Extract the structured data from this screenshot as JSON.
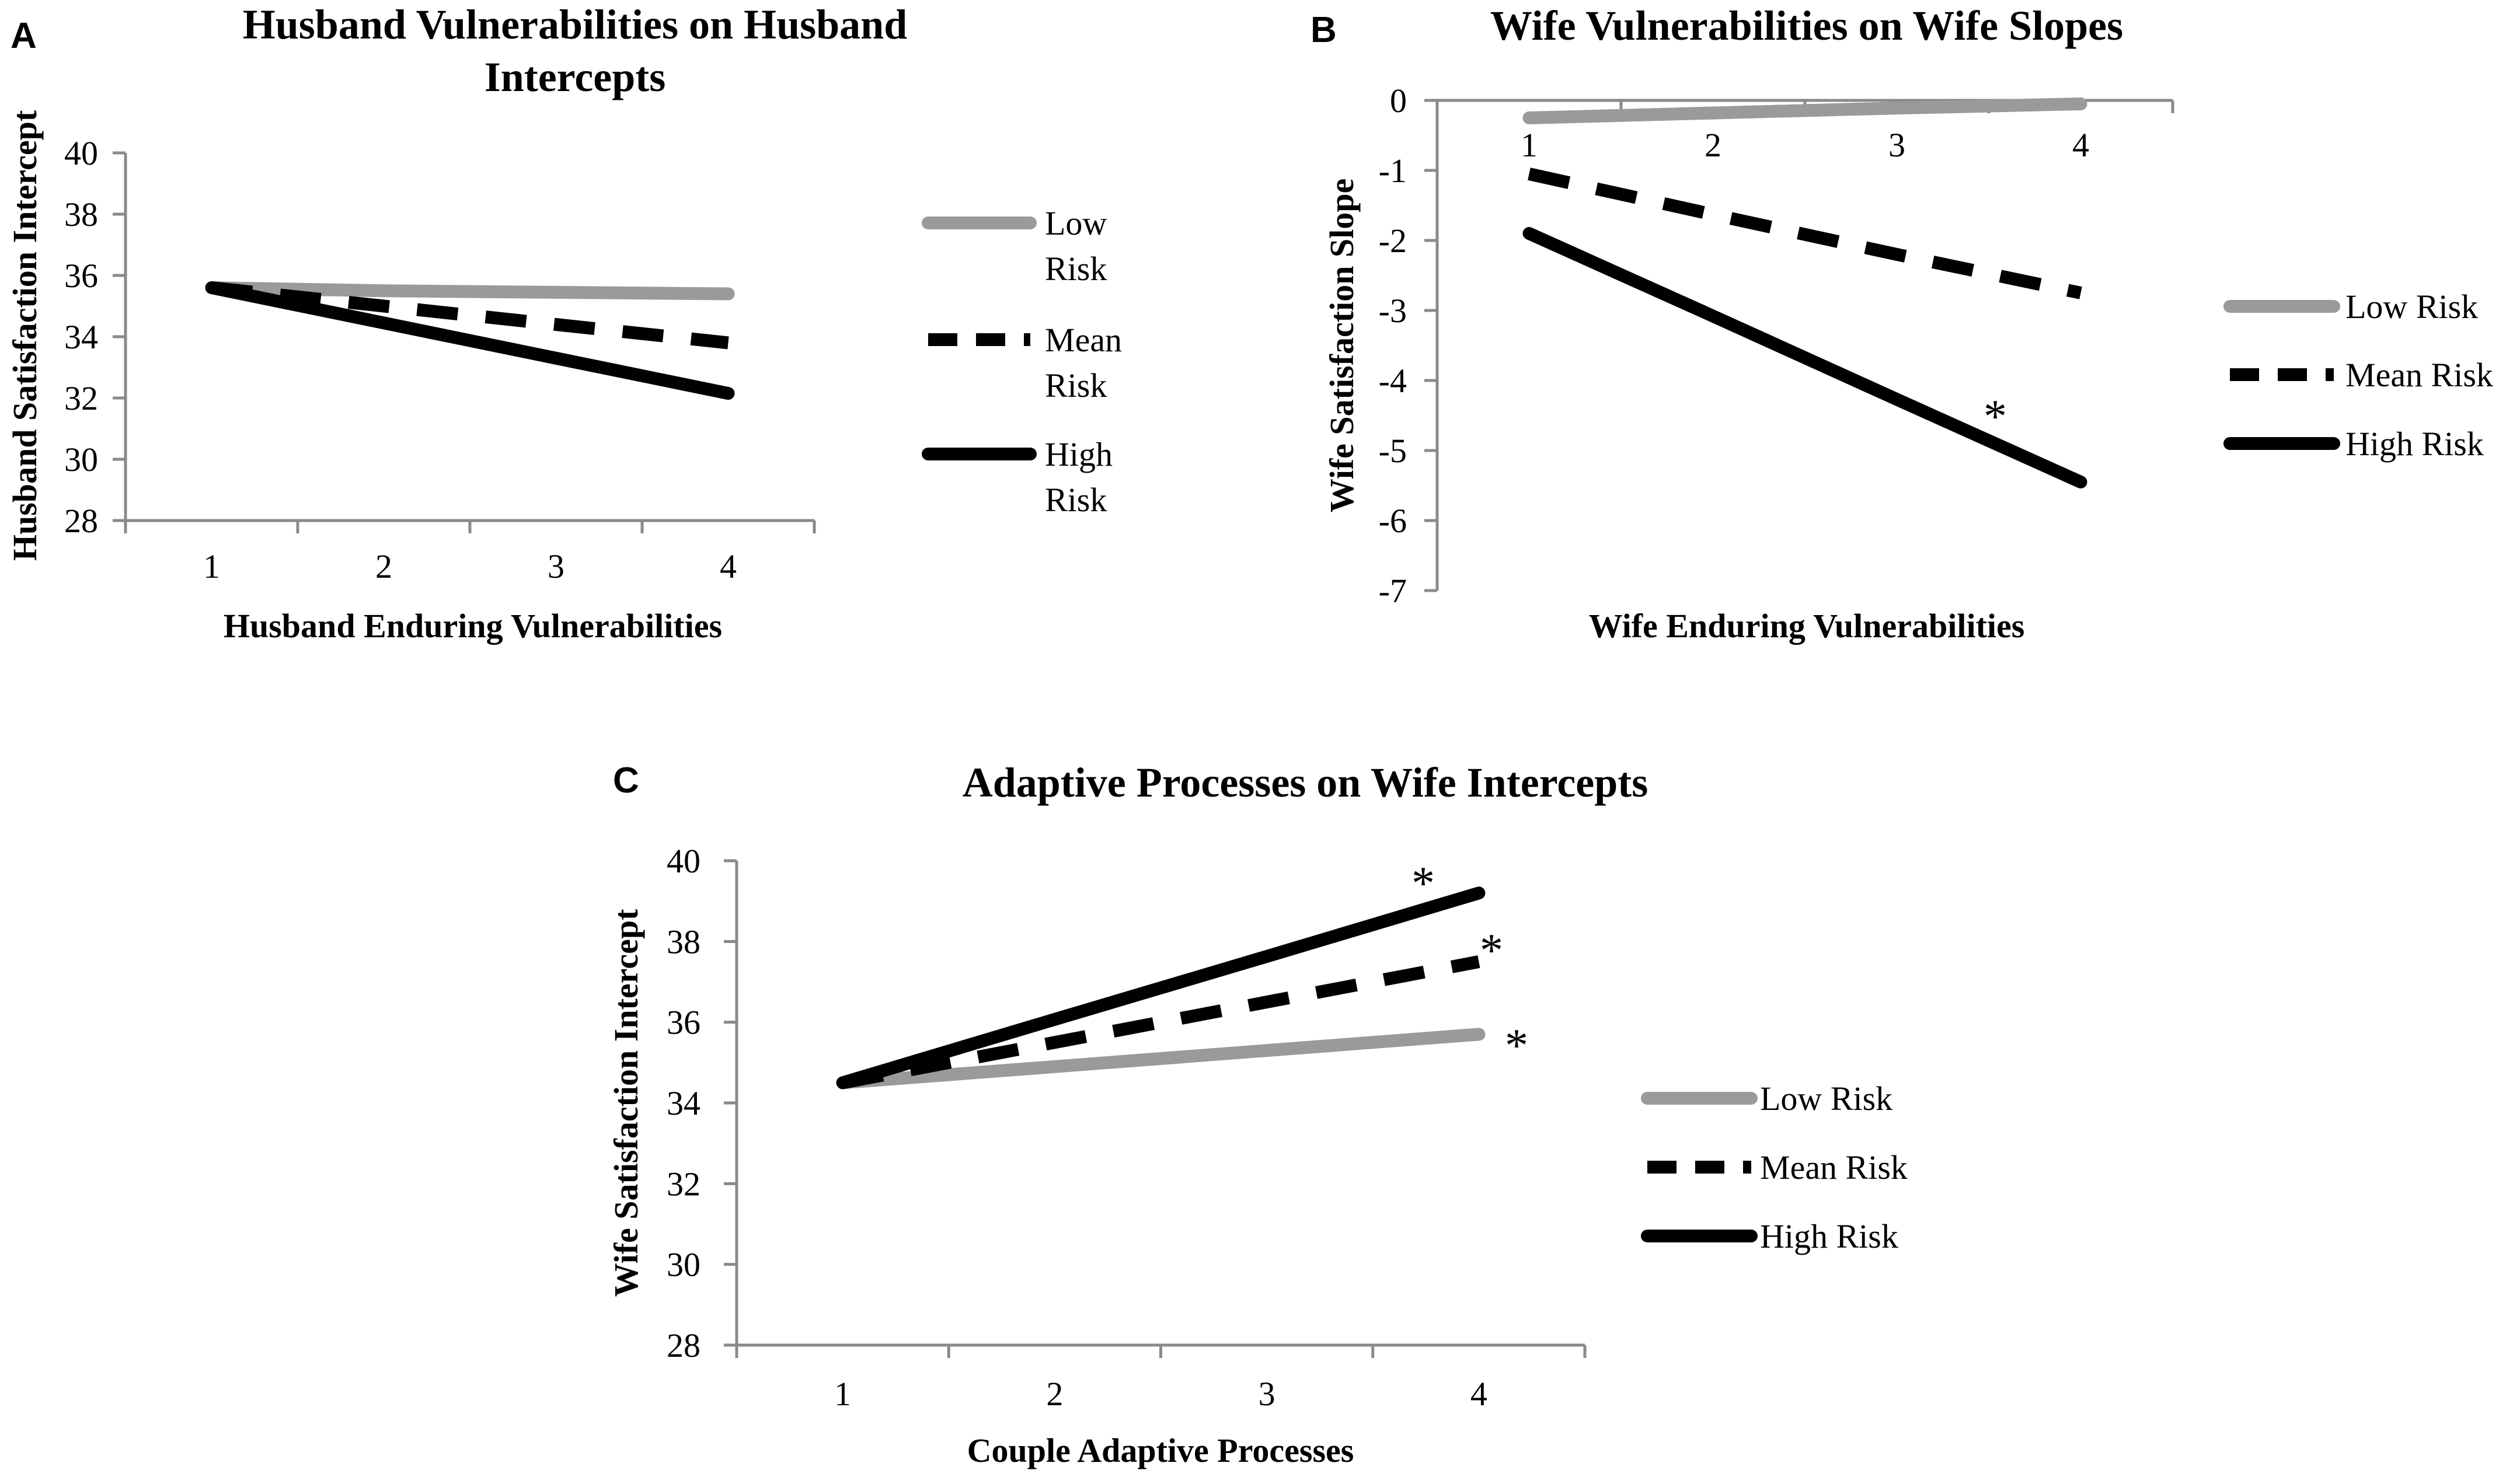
{
  "colors": {
    "low": "#9a9a9a",
    "mean": "#000000",
    "high": "#000000",
    "axis": "#8a8a8a",
    "text": "#000000"
  },
  "chart_data": [
    {
      "panel": "A",
      "type": "line",
      "title_lines": [
        "Husband Vulnerabilities on Husband",
        "Intercepts"
      ],
      "xlabel": "Husband Enduring Vulnerabilities",
      "ylabel": "Husband Satisfaction Intercept",
      "x": [
        1,
        2,
        3,
        4
      ],
      "x_tick_labels": [
        "1",
        "2",
        "3",
        "4"
      ],
      "ylim": [
        28,
        40
      ],
      "y_tick_values": [
        28,
        30,
        32,
        34,
        36,
        38,
        40
      ],
      "y_tick_labels": [
        "28",
        "30",
        "32",
        "34",
        "36",
        "38",
        "40"
      ],
      "series": [
        {
          "name": "Low Risk",
          "legend_lines": [
            "Low",
            "Risk"
          ],
          "style": "low",
          "values": [
            35.6,
            35.5,
            35.45,
            35.4
          ]
        },
        {
          "name": "Mean Risk",
          "legend_lines": [
            "Mean",
            "Risk"
          ],
          "style": "mean",
          "values": [
            35.6,
            35.0,
            34.4,
            33.8
          ]
        },
        {
          "name": "High Risk",
          "legend_lines": [
            "High",
            "Risk"
          ],
          "style": "high",
          "values": [
            35.6,
            34.45,
            33.3,
            32.15
          ]
        }
      ],
      "annotations": []
    },
    {
      "panel": "B",
      "type": "line",
      "title_lines": [
        "Wife Vulnerabilities on Wife Slopes"
      ],
      "xlabel": "Wife Enduring Vulnerabilities",
      "ylabel": "Wife Satisfaction Slope",
      "x": [
        1,
        2,
        3,
        4
      ],
      "x_tick_labels": [
        "1",
        "2",
        "3",
        "4"
      ],
      "ylim": [
        -7,
        0
      ],
      "y_tick_values": [
        0,
        -1,
        -2,
        -3,
        -4,
        -5,
        -6,
        -7
      ],
      "y_tick_labels": [
        "0",
        "-1",
        "-2",
        "-3",
        "-4",
        "-5",
        "-6",
        "-7"
      ],
      "series": [
        {
          "name": "Low Risk",
          "legend_lines": [
            "Low Risk"
          ],
          "style": "low",
          "values": [
            -0.25,
            -0.18,
            -0.11,
            -0.05
          ]
        },
        {
          "name": "Mean Risk",
          "legend_lines": [
            "Mean Risk"
          ],
          "style": "mean",
          "values": [
            -1.05,
            -1.63,
            -2.2,
            -2.75
          ]
        },
        {
          "name": "High Risk",
          "legend_lines": [
            "High Risk"
          ],
          "style": "high",
          "values": [
            -1.9,
            -3.08,
            -4.27,
            -5.45
          ]
        }
      ],
      "annotations": [
        {
          "text": "*",
          "series": "High Risk"
        }
      ]
    },
    {
      "panel": "C",
      "type": "line",
      "title_lines": [
        "Adaptive Processes on Wife Intercepts"
      ],
      "xlabel": "Couple Adaptive Processes",
      "ylabel": "Wife Satisfaction Intercept",
      "x": [
        1,
        2,
        3,
        4
      ],
      "x_tick_labels": [
        "1",
        "2",
        "3",
        "4"
      ],
      "ylim": [
        28,
        40
      ],
      "y_tick_values": [
        28,
        30,
        32,
        34,
        36,
        38,
        40
      ],
      "y_tick_labels": [
        "28",
        "30",
        "32",
        "34",
        "36",
        "38",
        "40"
      ],
      "series": [
        {
          "name": "Low Risk",
          "legend_lines": [
            "Low Risk"
          ],
          "style": "low",
          "values": [
            34.5,
            34.9,
            35.3,
            35.7
          ]
        },
        {
          "name": "Mean Risk",
          "legend_lines": [
            "Mean Risk"
          ],
          "style": "mean",
          "values": [
            34.5,
            35.5,
            36.5,
            37.5
          ]
        },
        {
          "name": "High Risk",
          "legend_lines": [
            "High Risk"
          ],
          "style": "high",
          "values": [
            34.5,
            36.07,
            37.63,
            39.2
          ]
        }
      ],
      "annotations": [
        {
          "text": "*",
          "series": "High Risk"
        },
        {
          "text": "*",
          "series": "Mean Risk"
        },
        {
          "text": "*",
          "series": "Low Risk"
        }
      ]
    }
  ]
}
